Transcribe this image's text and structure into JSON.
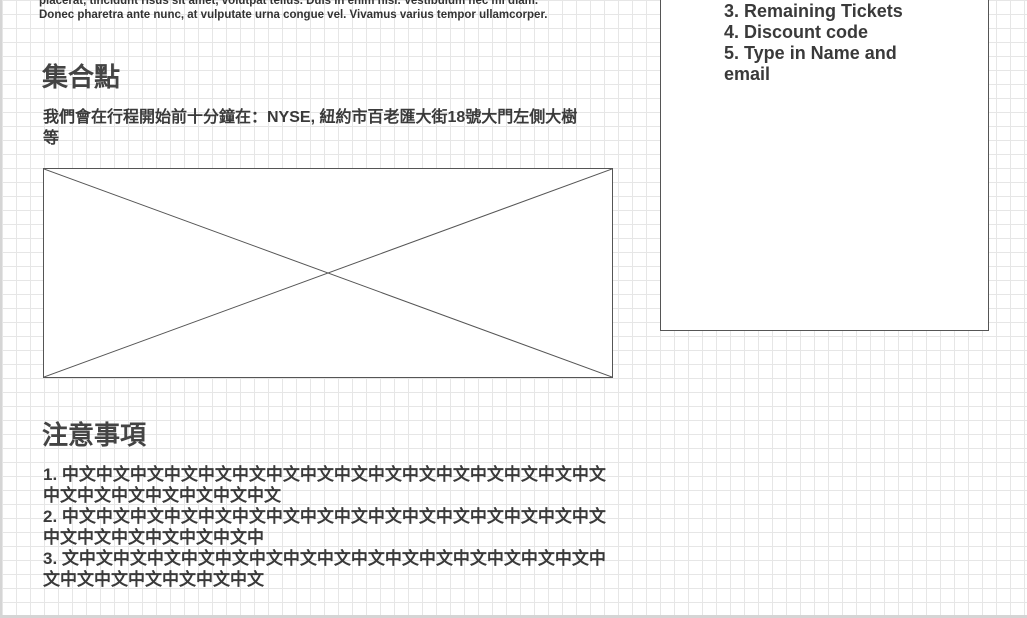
{
  "intro": {
    "line1": "placerat, tincidunt risus sit amet, volutpat tellus. Duis in enim nisi. Vestibulum nec mi diam.",
    "line2": "Donec pharetra ante nunc, at vulputate urna congue vel. Vivamus varius tempor ullamcorper."
  },
  "meeting_point": {
    "heading": "集合點",
    "description": "我們會在行程開始前十分鐘在：NYSE, 紐約市百老匯大街18號大門左側大樹等"
  },
  "notes": {
    "heading": "注意事項",
    "items": [
      "1. 中文中文中文中文中文中文中文中文中文中文中文中文中文中文中文中文中文中文中文中文中文中文中文",
      "2. 中文中文中文中文中文中文中文中文中文中文中文中文中文中文中文中文中文中文中文中文中文中文中",
      "3. 文中文中文中文中文中文中文中文中文中文中文中文中文中文中文中文中文中文中文中文中文中文中文"
    ]
  },
  "steps": {
    "items": [
      "3. Remaining Tickets",
      "4. Discount code",
      "5. Type in Name and email"
    ]
  },
  "colors": {
    "grid": "#e6e6e6",
    "text": "#3a3a3a",
    "border": "#555555"
  }
}
